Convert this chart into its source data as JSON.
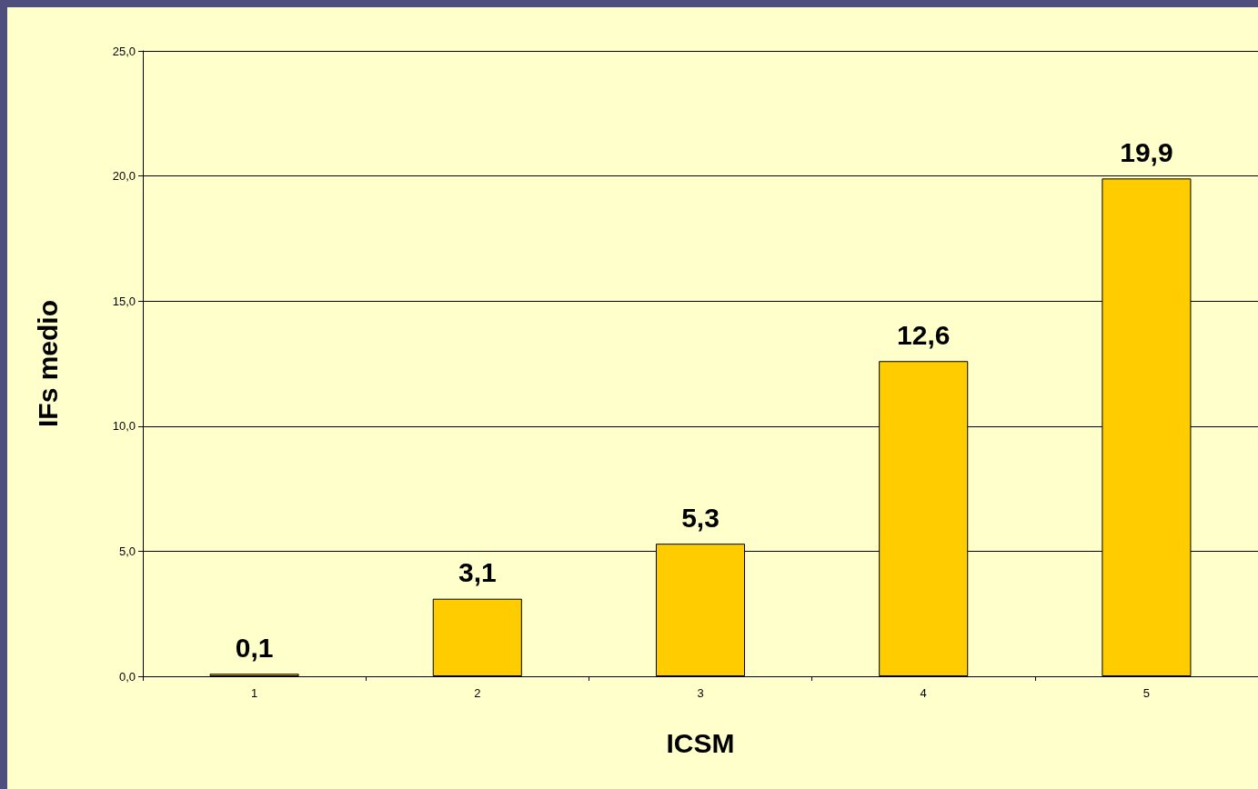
{
  "chart_data": {
    "type": "bar",
    "xlabel": "ICSM",
    "ylabel": "IFs medio",
    "categories": [
      "1",
      "2",
      "3",
      "4",
      "5"
    ],
    "values": [
      0.1,
      3.1,
      5.3,
      12.6,
      19.9
    ],
    "value_labels": [
      "0,1",
      "3,1",
      "5,3",
      "12,6",
      "19,9"
    ],
    "color": "#ffcc00",
    "ylim": [
      0,
      25
    ],
    "yticks": [
      {
        "value": 0,
        "label": "0,0"
      },
      {
        "value": 5,
        "label": "5,0"
      },
      {
        "value": 10,
        "label": "10,0"
      },
      {
        "value": 15,
        "label": "15,0"
      },
      {
        "value": 20,
        "label": "20,0"
      },
      {
        "value": 25,
        "label": "25,0"
      }
    ],
    "grid": "y"
  }
}
